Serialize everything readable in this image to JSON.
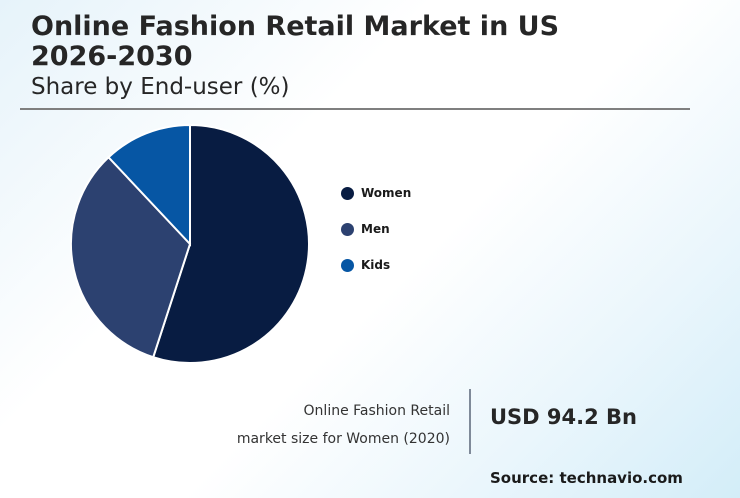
{
  "header": {
    "title": "Online Fashion Retail Market in US 2026-2030",
    "subtitle": "Share by End-user (%)"
  },
  "legend": {
    "items": [
      {
        "label": "Women",
        "color": "#081c42"
      },
      {
        "label": "Men",
        "color": "#2c4170"
      },
      {
        "label": "Kids",
        "color": "#0656a4"
      }
    ]
  },
  "kpi": {
    "label_line1": "Online Fashion Retail",
    "label_line2": "market size for Women (2020)",
    "value": "USD 94.2 Bn"
  },
  "footer": {
    "source": "Source: technavio.com"
  },
  "chart_data": {
    "type": "pie",
    "title": "Online Fashion Retail Market in US 2026-2030",
    "subtitle": "Share by End-user (%)",
    "categories": [
      "Women",
      "Men",
      "Kids"
    ],
    "values": [
      55,
      33,
      12
    ],
    "colors": [
      "#081c42",
      "#2c4170",
      "#0656a4"
    ],
    "start_angle": "12 o'clock, clockwise",
    "legend_position": "right",
    "data_labels": false,
    "annotation": {
      "label": "Online Fashion Retail market size for Women (2020)",
      "value": "USD 94.2 Bn"
    },
    "source": "technavio.com"
  }
}
